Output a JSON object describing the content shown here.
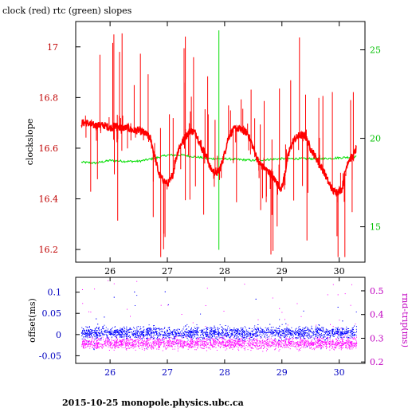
{
  "header": {
    "title": "clock (red) rtc (green) slopes"
  },
  "footer": {
    "text": "2015-10-25  monopole.physics.ubc.ca"
  },
  "colors": {
    "clock": "#ff0000",
    "rtc": "#00dd00",
    "offset": "#0000ff",
    "rnd_trip": "#ff00ff",
    "upper_left_axis": "#c00000",
    "upper_right_axis": "#00c000",
    "lower_left_axis": "#0000c0",
    "lower_right_axis": "#c000c0",
    "x_axis": "#000000"
  },
  "chart_data": [
    {
      "type": "line",
      "title": "clock (red) rtc (green) slopes",
      "xlabel": "",
      "ylabel": "clockslope",
      "y2label": "",
      "xlim": [
        25.4,
        30.45
      ],
      "ylim": [
        16.15,
        17.1
      ],
      "y2lim": [
        13.0,
        26.6
      ],
      "x_ticks": [
        26,
        27,
        28,
        29,
        30
      ],
      "y_ticks": [
        16.2,
        16.4,
        16.6,
        16.8,
        17
      ],
      "y2_ticks": [
        15,
        20,
        25
      ],
      "grid": false,
      "series": [
        {
          "name": "clock",
          "color_key": "clock",
          "axis": "left",
          "x": [
            25.5,
            25.6,
            25.7,
            25.8,
            25.9,
            26.0,
            26.1,
            26.2,
            26.3,
            26.4,
            26.5,
            26.6,
            26.7,
            26.8,
            26.85,
            26.9,
            26.95,
            27.0,
            27.05,
            27.1,
            27.15,
            27.2,
            27.3,
            27.4,
            27.5,
            27.6,
            27.7,
            27.75,
            27.8,
            27.85,
            27.9,
            27.95,
            28.0,
            28.05,
            28.1,
            28.2,
            28.3,
            28.4,
            28.5,
            28.6,
            28.7,
            28.8,
            28.85,
            28.9,
            28.95,
            29.0,
            29.05,
            29.1,
            29.15,
            29.2,
            29.3,
            29.4,
            29.5,
            29.6,
            29.7,
            29.75,
            29.8,
            29.85,
            29.9,
            29.95,
            30.0,
            30.05,
            30.1,
            30.15,
            30.2,
            30.25,
            30.3
          ],
          "y": [
            16.7,
            16.7,
            16.69,
            16.69,
            16.69,
            16.68,
            16.69,
            16.68,
            16.68,
            16.67,
            16.67,
            16.66,
            16.64,
            16.55,
            16.5,
            16.48,
            16.47,
            16.46,
            16.47,
            16.5,
            16.56,
            16.6,
            16.64,
            16.67,
            16.66,
            16.6,
            16.56,
            16.52,
            16.51,
            16.5,
            16.51,
            16.54,
            16.58,
            16.63,
            16.66,
            16.68,
            16.67,
            16.66,
            16.6,
            16.54,
            16.52,
            16.5,
            16.48,
            16.47,
            16.45,
            16.44,
            16.5,
            16.56,
            16.6,
            16.63,
            16.65,
            16.65,
            16.6,
            16.56,
            16.52,
            16.5,
            16.47,
            16.45,
            16.43,
            16.43,
            16.43,
            16.44,
            16.5,
            16.55,
            16.56,
            16.57,
            16.6
          ]
        },
        {
          "name": "rtc",
          "color_key": "rtc",
          "axis": "right",
          "x": [
            25.5,
            25.75,
            26.0,
            26.25,
            26.5,
            26.75,
            27.0,
            27.25,
            27.5,
            27.75,
            28.0,
            28.25,
            28.5,
            28.75,
            29.0,
            29.25,
            29.5,
            29.75,
            30.0,
            30.25,
            30.3
          ],
          "y": [
            18.65,
            18.6,
            18.75,
            18.7,
            18.7,
            18.85,
            19.05,
            19.05,
            18.95,
            18.85,
            18.85,
            18.8,
            18.75,
            18.8,
            18.85,
            18.85,
            18.85,
            18.85,
            18.9,
            18.95,
            18.95
          ]
        }
      ]
    },
    {
      "type": "scatter",
      "title": "",
      "xlabel": "",
      "ylabel": "offset(ms)",
      "y2label": "rnd-trip(ms)",
      "xlim": [
        25.4,
        30.45
      ],
      "ylim": [
        -0.068,
        0.135
      ],
      "y2lim": [
        0.194,
        0.557
      ],
      "x_ticks": [
        26,
        27,
        28,
        29,
        30
      ],
      "y_ticks": [
        -0.05,
        0,
        0.05,
        0.1
      ],
      "y2_ticks": [
        0.2,
        0.3,
        0.4,
        0.5
      ],
      "grid": false,
      "series": [
        {
          "name": "offset",
          "color_key": "offset",
          "axis": "left",
          "center": 0.005,
          "spread": 0.022,
          "x_range": [
            25.5,
            30.3
          ]
        },
        {
          "name": "rnd-trip",
          "color_key": "rnd_trip",
          "axis": "right",
          "center": 0.28,
          "spread": 0.03,
          "x_range": [
            25.5,
            30.3
          ]
        }
      ]
    }
  ]
}
